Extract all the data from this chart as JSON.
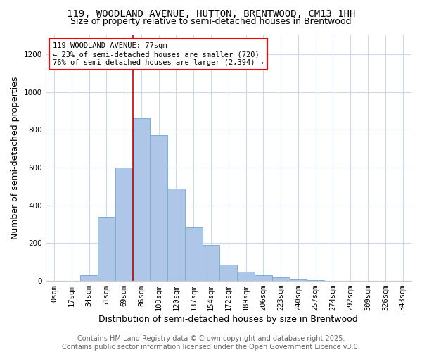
{
  "title_line1": "119, WOODLAND AVENUE, HUTTON, BRENTWOOD, CM13 1HH",
  "title_line2": "Size of property relative to semi-detached houses in Brentwood",
  "xlabel": "Distribution of semi-detached houses by size in Brentwood",
  "ylabel": "Number of semi-detached properties",
  "bar_labels": [
    "0sqm",
    "17sqm",
    "34sqm",
    "51sqm",
    "69sqm",
    "86sqm",
    "103sqm",
    "120sqm",
    "137sqm",
    "154sqm",
    "172sqm",
    "189sqm",
    "206sqm",
    "223sqm",
    "240sqm",
    "257sqm",
    "274sqm",
    "292sqm",
    "309sqm",
    "326sqm",
    "343sqm"
  ],
  "bar_values": [
    1,
    1,
    30,
    340,
    600,
    860,
    770,
    490,
    285,
    190,
    85,
    50,
    30,
    18,
    8,
    4,
    2,
    1,
    1,
    0,
    0
  ],
  "bar_color": "#aec6e8",
  "bar_edge_color": "#7bafd4",
  "annotation_text": "119 WOODLAND AVENUE: 77sqm\n← 23% of semi-detached houses are smaller (720)\n76% of semi-detached houses are larger (2,394) →",
  "annotation_box_color": "white",
  "annotation_box_edge_color": "red",
  "vline_x": 4.5,
  "vline_color": "#cc0000",
  "footer_text": "Contains HM Land Registry data © Crown copyright and database right 2025.\nContains public sector information licensed under the Open Government Licence v3.0.",
  "ylim": [
    0,
    1300
  ],
  "yticks": [
    0,
    200,
    400,
    600,
    800,
    1000,
    1200
  ],
  "background_color": "white",
  "grid_color": "#ccd8ec",
  "title_fontsize": 10,
  "subtitle_fontsize": 9,
  "axis_label_fontsize": 9,
  "tick_fontsize": 7.5,
  "footer_fontsize": 7
}
